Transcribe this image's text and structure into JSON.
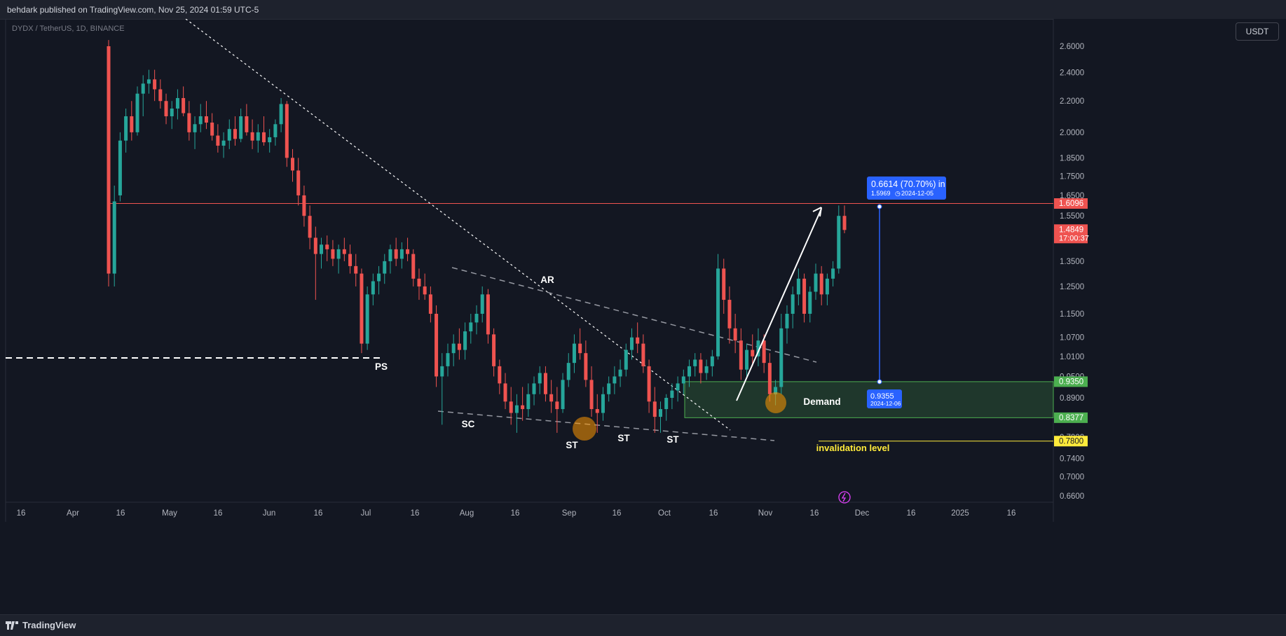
{
  "header": {
    "published": "behdark published on TradingView.com, Nov 25, 2024 01:59 UTC-5"
  },
  "symbol_line": "DYDX / TetherUS, 1D, BINANCE",
  "unit_button": "USDT",
  "footer": {
    "brand": "TradingView"
  },
  "colors": {
    "up": "#26a69a",
    "down": "#ef5350",
    "bg": "#131722",
    "blue": "#2962ff",
    "green_zone": "#1f4d2b",
    "yellow": "#ffeb3b"
  },
  "chart_data": {
    "type": "candlestick",
    "y_scale": "log",
    "y_ticks": [
      "2.6000",
      "2.4000",
      "2.2000",
      "2.0000",
      "1.8500",
      "1.7500",
      "1.6500",
      "1.5500",
      "1.3500",
      "1.2500",
      "1.1500",
      "1.0700",
      "1.0100",
      "0.9500",
      "0.8900",
      "0.7900",
      "0.7400",
      "0.7000",
      "0.6600"
    ],
    "x_ticks": [
      "16",
      "Apr",
      "16",
      "May",
      "16",
      "Jun",
      "16",
      "Jul",
      "16",
      "Aug",
      "16",
      "Sep",
      "16",
      "Oct",
      "16",
      "Nov",
      "16",
      "Dec",
      "16",
      "2025",
      "16"
    ],
    "price_labels": [
      {
        "text": "1.6096",
        "value": 1.6096,
        "color": "#ef5350"
      },
      {
        "text": "1.4849",
        "sub": "17:00:37",
        "value": 1.4849,
        "color": "#ef5350"
      },
      {
        "text": "0.9350",
        "value": 0.935,
        "color": "#4caf50"
      },
      {
        "text": "0.8377",
        "value": 0.8377,
        "color": "#4caf50"
      },
      {
        "text": "0.7800",
        "value": 0.78,
        "color": "#ffeb3b"
      }
    ],
    "annotations": [
      {
        "text": "PS"
      },
      {
        "text": "SC"
      },
      {
        "text": "AR"
      },
      {
        "text": "ST"
      },
      {
        "text": "ST"
      },
      {
        "text": "ST"
      },
      {
        "text": "Demand"
      },
      {
        "text": "invalidation level"
      }
    ],
    "measure": {
      "title": "0.6614 (70.70%) in",
      "sub_price": "1.5969",
      "sub_date": "2024-12-05",
      "bottom_price": "0.9355",
      "bottom_date": "2024-12-06"
    },
    "candles": [
      [
        2.6,
        2.65,
        1.25,
        1.3
      ],
      [
        1.3,
        1.7,
        1.25,
        1.62
      ],
      [
        1.65,
        2.0,
        1.62,
        1.95
      ],
      [
        1.95,
        2.15,
        1.88,
        2.1
      ],
      [
        2.1,
        2.2,
        1.95,
        2.0
      ],
      [
        2.0,
        2.3,
        1.98,
        2.25
      ],
      [
        2.25,
        2.38,
        2.1,
        2.32
      ],
      [
        2.32,
        2.42,
        2.25,
        2.35
      ],
      [
        2.35,
        2.42,
        2.2,
        2.28
      ],
      [
        2.28,
        2.35,
        2.15,
        2.2
      ],
      [
        2.2,
        2.25,
        2.05,
        2.1
      ],
      [
        2.1,
        2.2,
        2.02,
        2.15
      ],
      [
        2.15,
        2.28,
        2.08,
        2.22
      ],
      [
        2.22,
        2.3,
        2.1,
        2.12
      ],
      [
        2.12,
        2.2,
        1.95,
        2.0
      ],
      [
        2.0,
        2.1,
        1.9,
        2.05
      ],
      [
        2.05,
        2.18,
        2.0,
        2.1
      ],
      [
        2.1,
        2.2,
        2.02,
        2.06
      ],
      [
        2.06,
        2.12,
        1.95,
        1.98
      ],
      [
        1.98,
        2.05,
        1.88,
        1.92
      ],
      [
        1.92,
        2.0,
        1.85,
        1.95
      ],
      [
        1.95,
        2.08,
        1.9,
        2.02
      ],
      [
        2.02,
        2.1,
        1.92,
        1.96
      ],
      [
        1.96,
        2.15,
        1.94,
        2.1
      ],
      [
        2.1,
        2.18,
        1.98,
        2.0
      ],
      [
        2.0,
        2.08,
        1.9,
        1.95
      ],
      [
        1.95,
        2.05,
        1.88,
        2.0
      ],
      [
        2.0,
        2.1,
        1.92,
        1.94
      ],
      [
        1.94,
        2.02,
        1.88,
        1.97
      ],
      [
        1.97,
        2.08,
        1.92,
        2.05
      ],
      [
        2.05,
        2.22,
        2.0,
        2.18
      ],
      [
        2.18,
        2.2,
        1.8,
        1.85
      ],
      [
        1.85,
        1.9,
        1.72,
        1.78
      ],
      [
        1.78,
        1.85,
        1.6,
        1.65
      ],
      [
        1.65,
        1.7,
        1.5,
        1.55
      ],
      [
        1.55,
        1.6,
        1.4,
        1.45
      ],
      [
        1.45,
        1.5,
        1.2,
        1.38
      ],
      [
        1.38,
        1.45,
        1.32,
        1.42
      ],
      [
        1.42,
        1.46,
        1.35,
        1.4
      ],
      [
        1.4,
        1.44,
        1.33,
        1.36
      ],
      [
        1.36,
        1.42,
        1.3,
        1.4
      ],
      [
        1.4,
        1.45,
        1.35,
        1.38
      ],
      [
        1.38,
        1.42,
        1.3,
        1.33
      ],
      [
        1.33,
        1.38,
        1.25,
        1.3
      ],
      [
        1.3,
        1.32,
        1.02,
        1.05
      ],
      [
        1.05,
        1.25,
        1.03,
        1.22
      ],
      [
        1.22,
        1.3,
        1.18,
        1.27
      ],
      [
        1.27,
        1.33,
        1.22,
        1.3
      ],
      [
        1.3,
        1.38,
        1.26,
        1.35
      ],
      [
        1.35,
        1.42,
        1.3,
        1.4
      ],
      [
        1.4,
        1.45,
        1.33,
        1.36
      ],
      [
        1.36,
        1.43,
        1.32,
        1.4
      ],
      [
        1.4,
        1.45,
        1.35,
        1.38
      ],
      [
        1.38,
        1.4,
        1.25,
        1.28
      ],
      [
        1.28,
        1.32,
        1.2,
        1.25
      ],
      [
        1.25,
        1.3,
        1.2,
        1.22
      ],
      [
        1.22,
        1.25,
        1.12,
        1.15
      ],
      [
        1.15,
        1.18,
        0.92,
        0.95
      ],
      [
        0.95,
        1.02,
        0.82,
        0.98
      ],
      [
        0.98,
        1.05,
        0.95,
        1.02
      ],
      [
        1.02,
        1.08,
        0.98,
        1.05
      ],
      [
        1.05,
        1.1,
        1.0,
        1.03
      ],
      [
        1.03,
        1.12,
        1.0,
        1.09
      ],
      [
        1.09,
        1.15,
        1.05,
        1.12
      ],
      [
        1.12,
        1.18,
        1.08,
        1.15
      ],
      [
        1.15,
        1.25,
        1.12,
        1.22
      ],
      [
        1.22,
        1.24,
        1.05,
        1.08
      ],
      [
        1.08,
        1.1,
        0.95,
        0.98
      ],
      [
        0.98,
        1.0,
        0.9,
        0.93
      ],
      [
        0.93,
        0.96,
        0.86,
        0.88
      ],
      [
        0.88,
        0.92,
        0.82,
        0.85
      ],
      [
        0.85,
        0.9,
        0.8,
        0.87
      ],
      [
        0.87,
        0.92,
        0.83,
        0.86
      ],
      [
        0.86,
        0.93,
        0.84,
        0.9
      ],
      [
        0.9,
        0.95,
        0.87,
        0.93
      ],
      [
        0.93,
        0.98,
        0.9,
        0.96
      ],
      [
        0.96,
        0.98,
        0.88,
        0.9
      ],
      [
        0.9,
        0.94,
        0.85,
        0.88
      ],
      [
        0.88,
        0.92,
        0.8,
        0.86
      ],
      [
        0.86,
        0.96,
        0.85,
        0.94
      ],
      [
        0.94,
        1.02,
        0.92,
        0.99
      ],
      [
        0.99,
        1.08,
        0.96,
        1.05
      ],
      [
        1.05,
        1.1,
        1.0,
        1.02
      ],
      [
        1.02,
        1.06,
        0.92,
        0.94
      ],
      [
        0.94,
        0.98,
        0.84,
        0.86
      ],
      [
        0.86,
        0.9,
        0.8,
        0.85
      ],
      [
        0.85,
        0.92,
        0.83,
        0.9
      ],
      [
        0.9,
        0.95,
        0.88,
        0.93
      ],
      [
        0.93,
        0.98,
        0.9,
        0.95
      ],
      [
        0.95,
        1.0,
        0.92,
        0.97
      ],
      [
        0.97,
        1.05,
        0.95,
        1.03
      ],
      [
        1.03,
        1.1,
        1.0,
        1.07
      ],
      [
        1.07,
        1.12,
        1.02,
        1.05
      ],
      [
        1.05,
        1.08,
        0.96,
        0.98
      ],
      [
        0.98,
        1.0,
        0.85,
        0.88
      ],
      [
        0.88,
        0.92,
        0.8,
        0.84
      ],
      [
        0.84,
        0.88,
        0.8,
        0.86
      ],
      [
        0.86,
        0.9,
        0.83,
        0.89
      ],
      [
        0.89,
        0.93,
        0.86,
        0.91
      ],
      [
        0.91,
        0.95,
        0.88,
        0.93
      ],
      [
        0.93,
        0.97,
        0.9,
        0.95
      ],
      [
        0.95,
        1.0,
        0.92,
        0.98
      ],
      [
        0.98,
        1.02,
        0.95,
        1.0
      ],
      [
        1.0,
        1.02,
        0.93,
        0.96
      ],
      [
        0.96,
        1.0,
        0.94,
        0.98
      ],
      [
        0.98,
        1.03,
        0.95,
        1.01
      ],
      [
        1.01,
        1.38,
        1.0,
        1.32
      ],
      [
        1.32,
        1.36,
        1.15,
        1.2
      ],
      [
        1.2,
        1.25,
        1.05,
        1.1
      ],
      [
        1.1,
        1.15,
        1.02,
        1.06
      ],
      [
        1.06,
        1.1,
        0.94,
        0.97
      ],
      [
        0.97,
        1.05,
        0.95,
        1.03
      ],
      [
        1.03,
        1.08,
        0.98,
        1.01
      ],
      [
        1.01,
        1.1,
        0.98,
        1.06
      ],
      [
        1.06,
        1.08,
        0.96,
        0.99
      ],
      [
        0.99,
        1.02,
        0.88,
        0.9
      ],
      [
        0.9,
        0.94,
        0.87,
        0.92
      ],
      [
        0.92,
        1.15,
        0.9,
        1.1
      ],
      [
        1.1,
        1.18,
        1.05,
        1.15
      ],
      [
        1.15,
        1.25,
        1.1,
        1.22
      ],
      [
        1.22,
        1.32,
        1.18,
        1.28
      ],
      [
        1.28,
        1.3,
        1.12,
        1.15
      ],
      [
        1.15,
        1.25,
        1.12,
        1.23
      ],
      [
        1.23,
        1.34,
        1.2,
        1.3
      ],
      [
        1.3,
        1.33,
        1.18,
        1.22
      ],
      [
        1.22,
        1.3,
        1.18,
        1.28
      ],
      [
        1.28,
        1.35,
        1.25,
        1.32
      ],
      [
        1.32,
        1.6,
        1.3,
        1.55
      ],
      [
        1.55,
        1.6,
        1.47,
        1.4849
      ]
    ]
  }
}
